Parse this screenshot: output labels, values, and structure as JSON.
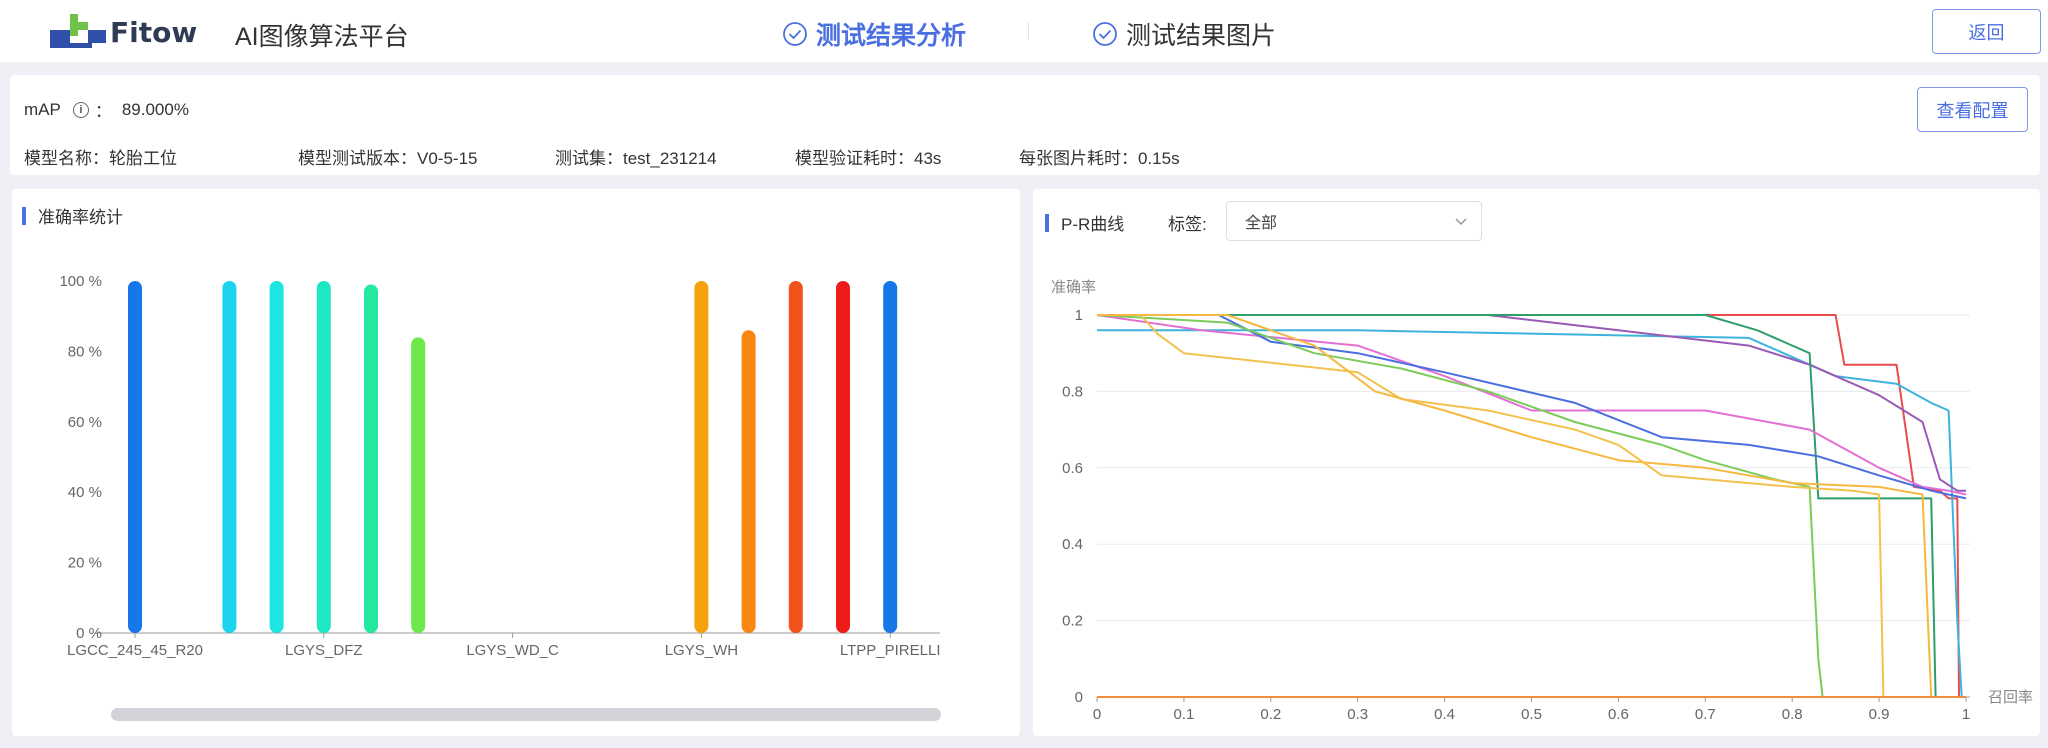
{
  "header": {
    "logo_text": "Fitow",
    "app_title": "AI图像算法平台",
    "tabs": [
      {
        "label": "测试结果分析",
        "active": true
      },
      {
        "label": "测试结果图片",
        "active": false
      }
    ],
    "back_label": "返回"
  },
  "info": {
    "map_label": "mAP",
    "map_sep": "：",
    "map_value": "89.000%",
    "view_config_label": "查看配置",
    "model_name": "模型名称：轮胎工位",
    "model_version": "模型测试版本：V0-5-15",
    "test_set": "测试集：test_231214",
    "verify_time": "模型验证耗时：43s",
    "per_image_time": "每张图片耗时：0.15s"
  },
  "accuracy_panel": {
    "title": "准确率统计"
  },
  "pr_panel": {
    "title": "P-R曲线",
    "filter_label": "标签:",
    "filter_value": "全部"
  },
  "chart_data": [
    {
      "type": "bar",
      "title": "准确率统计",
      "ylim": [
        0,
        100
      ],
      "yticks": [
        "0 %",
        "20 %",
        "40 %",
        "60 %",
        "80 %",
        "100 %"
      ],
      "xtick_labels": [
        "LGCC_245_45_R20",
        "LGYS_DFZ",
        "LGYS_WD_C",
        "LGYS_WH",
        "LTPP_PIRELLI"
      ],
      "bars": [
        {
          "slot": 0,
          "value": 100,
          "color": "#1677e8"
        },
        {
          "slot": 2,
          "value": 100,
          "color": "#1dd4ee"
        },
        {
          "slot": 3,
          "value": 100,
          "color": "#1de6e0"
        },
        {
          "slot": 4,
          "value": 100,
          "color": "#1ee8c4"
        },
        {
          "slot": 5,
          "value": 99,
          "color": "#22e8a0"
        },
        {
          "slot": 6,
          "value": 84,
          "color": "#6ce84a"
        },
        {
          "slot": 12,
          "value": 100,
          "color": "#f5a20c"
        },
        {
          "slot": 13,
          "value": 86,
          "color": "#f88612"
        },
        {
          "slot": 14,
          "value": 100,
          "color": "#f2521c"
        },
        {
          "slot": 15,
          "value": 100,
          "color": "#ef1b1b"
        },
        {
          "slot": 16,
          "value": 100,
          "color": "#1677e8"
        }
      ],
      "grid": false
    },
    {
      "type": "line",
      "title": "P-R曲线",
      "xlabel": "召回率",
      "ylabel": "准确率",
      "xlim": [
        0,
        1
      ],
      "ylim": [
        0,
        1
      ],
      "xticks": [
        "0",
        "0.1",
        "0.2",
        "0.3",
        "0.4",
        "0.5",
        "0.6",
        "0.7",
        "0.8",
        "0.9",
        "1"
      ],
      "yticks": [
        "0",
        "0.2",
        "0.4",
        "0.6",
        "0.8",
        "1"
      ],
      "grid": true,
      "series": [
        {
          "color": "#e84c4c",
          "points": [
            [
              0,
              1
            ],
            [
              0.85,
              1
            ],
            [
              0.86,
              0.87
            ],
            [
              0.92,
              0.87
            ],
            [
              0.94,
              0.55
            ],
            [
              0.97,
              0.54
            ],
            [
              0.98,
              0.52
            ],
            [
              0.99,
              0.52
            ],
            [
              0.992,
              0
            ]
          ]
        },
        {
          "color": "#3cb4dc",
          "points": [
            [
              0,
              0.96
            ],
            [
              0.3,
              0.96
            ],
            [
              0.75,
              0.94
            ],
            [
              0.85,
              0.84
            ],
            [
              0.92,
              0.82
            ],
            [
              0.96,
              0.77
            ],
            [
              0.98,
              0.75
            ],
            [
              0.99,
              0.2
            ],
            [
              0.995,
              0
            ]
          ]
        },
        {
          "color": "#9b59b6",
          "points": [
            [
              0,
              1
            ],
            [
              0.45,
              1
            ],
            [
              0.6,
              0.96
            ],
            [
              0.75,
              0.92
            ],
            [
              0.82,
              0.87
            ],
            [
              0.9,
              0.79
            ],
            [
              0.95,
              0.72
            ],
            [
              0.97,
              0.57
            ],
            [
              0.99,
              0.54
            ],
            [
              1,
              0.54
            ]
          ]
        },
        {
          "color": "#2e9e6b",
          "points": [
            [
              0,
              1
            ],
            [
              0.7,
              1
            ],
            [
              0.76,
              0.96
            ],
            [
              0.82,
              0.9
            ],
            [
              0.83,
              0.52
            ],
            [
              0.95,
              0.52
            ],
            [
              0.96,
              0.52
            ],
            [
              0.965,
              0
            ]
          ]
        },
        {
          "color": "#e46fd3",
          "points": [
            [
              0,
              1
            ],
            [
              0.12,
              0.96
            ],
            [
              0.3,
              0.92
            ],
            [
              0.4,
              0.84
            ],
            [
              0.5,
              0.75
            ],
            [
              0.7,
              0.75
            ],
            [
              0.82,
              0.7
            ],
            [
              0.9,
              0.6
            ],
            [
              0.95,
              0.55
            ],
            [
              0.98,
              0.54
            ],
            [
              1,
              0.53
            ]
          ]
        },
        {
          "color": "#4a6fe0",
          "points": [
            [
              0,
              1
            ],
            [
              0.14,
              1
            ],
            [
              0.2,
              0.93
            ],
            [
              0.3,
              0.9
            ],
            [
              0.4,
              0.85
            ],
            [
              0.55,
              0.77
            ],
            [
              0.65,
              0.68
            ],
            [
              0.75,
              0.66
            ],
            [
              0.83,
              0.63
            ],
            [
              0.9,
              0.58
            ],
            [
              0.96,
              0.54
            ],
            [
              1,
              0.52
            ]
          ]
        },
        {
          "color": "#7ccc5a",
          "points": [
            [
              0,
              1
            ],
            [
              0.15,
              0.98
            ],
            [
              0.25,
              0.9
            ],
            [
              0.35,
              0.86
            ],
            [
              0.45,
              0.8
            ],
            [
              0.55,
              0.72
            ],
            [
              0.65,
              0.66
            ],
            [
              0.7,
              0.62
            ],
            [
              0.78,
              0.57
            ],
            [
              0.82,
              0.55
            ],
            [
              0.83,
              0.1
            ],
            [
              0.835,
              0
            ]
          ]
        },
        {
          "color": "#f2c14e",
          "points": [
            [
              0,
              1
            ],
            [
              0.05,
              1
            ],
            [
              0.07,
              0.95
            ],
            [
              0.1,
              0.9
            ],
            [
              0.18,
              0.88
            ],
            [
              0.3,
              0.85
            ],
            [
              0.35,
              0.78
            ],
            [
              0.45,
              0.75
            ],
            [
              0.55,
              0.7
            ],
            [
              0.6,
              0.66
            ],
            [
              0.65,
              0.58
            ],
            [
              0.8,
              0.55
            ],
            [
              0.87,
              0.54
            ],
            [
              0.9,
              0.53
            ],
            [
              0.905,
              0
            ]
          ]
        },
        {
          "color": "#f5b942",
          "points": [
            [
              0,
              1
            ],
            [
              0.15,
              1
            ],
            [
              0.2,
              0.96
            ],
            [
              0.25,
              0.92
            ],
            [
              0.32,
              0.8
            ],
            [
              0.4,
              0.75
            ],
            [
              0.5,
              0.68
            ],
            [
              0.6,
              0.62
            ],
            [
              0.7,
              0.6
            ],
            [
              0.8,
              0.56
            ],
            [
              0.9,
              0.55
            ],
            [
              0.95,
              0.53
            ],
            [
              0.96,
              0
            ]
          ]
        },
        {
          "color": "#f08c3c",
          "points": [
            [
              0,
              0
            ],
            [
              1,
              0
            ]
          ]
        }
      ]
    }
  ]
}
